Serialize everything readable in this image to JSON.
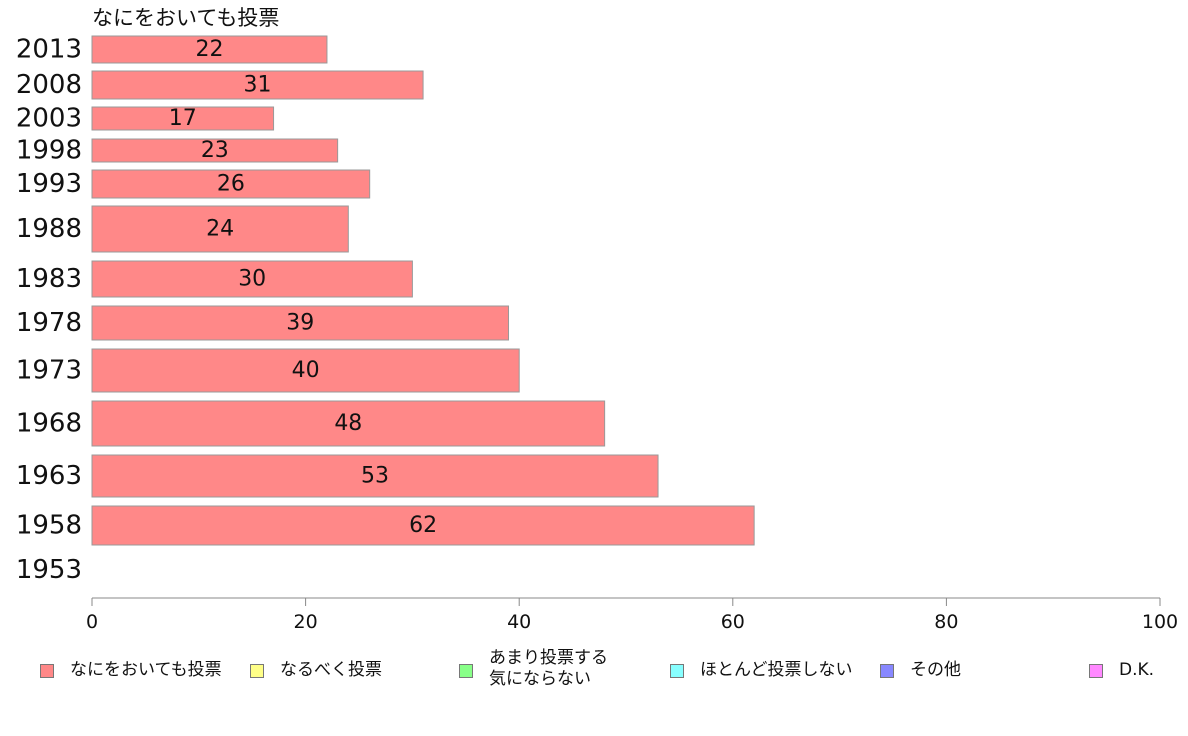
{
  "chart_data": {
    "type": "bar",
    "orientation": "horizontal",
    "subtitle": "なにをおいても投票",
    "categories": [
      "2013",
      "2008",
      "2003",
      "1998",
      "1993",
      "1988",
      "1983",
      "1978",
      "1973",
      "1968",
      "1963",
      "1958",
      "1953"
    ],
    "values": [
      22,
      31,
      17,
      23,
      26,
      24,
      30,
      39,
      40,
      48,
      53,
      62,
      null
    ],
    "data_labels": [
      "22",
      "31",
      "17",
      "23",
      "26",
      "24",
      "30",
      "39",
      "40",
      "48",
      "53",
      "62",
      ""
    ],
    "xlim": [
      0,
      100
    ],
    "x_ticks": [
      0,
      20,
      40,
      60,
      80,
      100
    ],
    "x_tick_labels": [
      "0",
      "20",
      "40",
      "60",
      "80",
      "100"
    ],
    "grid": false,
    "bar_color": "#ff8888",
    "bar_edge_color": "#999999",
    "legend": {
      "placement": "bottom",
      "entries": [
        {
          "label": "なにをおいても投票",
          "color": "#ff8888"
        },
        {
          "label": "なるべく投票",
          "color": "#ffff88"
        },
        {
          "label": "あまり投票する\n気にならない",
          "color": "#88ff88"
        },
        {
          "label": "ほとんど投票しない",
          "color": "#88ffff"
        },
        {
          "label": "その他",
          "color": "#8888ff"
        },
        {
          "label": "D.K.",
          "color": "#ff88ff"
        }
      ]
    }
  }
}
